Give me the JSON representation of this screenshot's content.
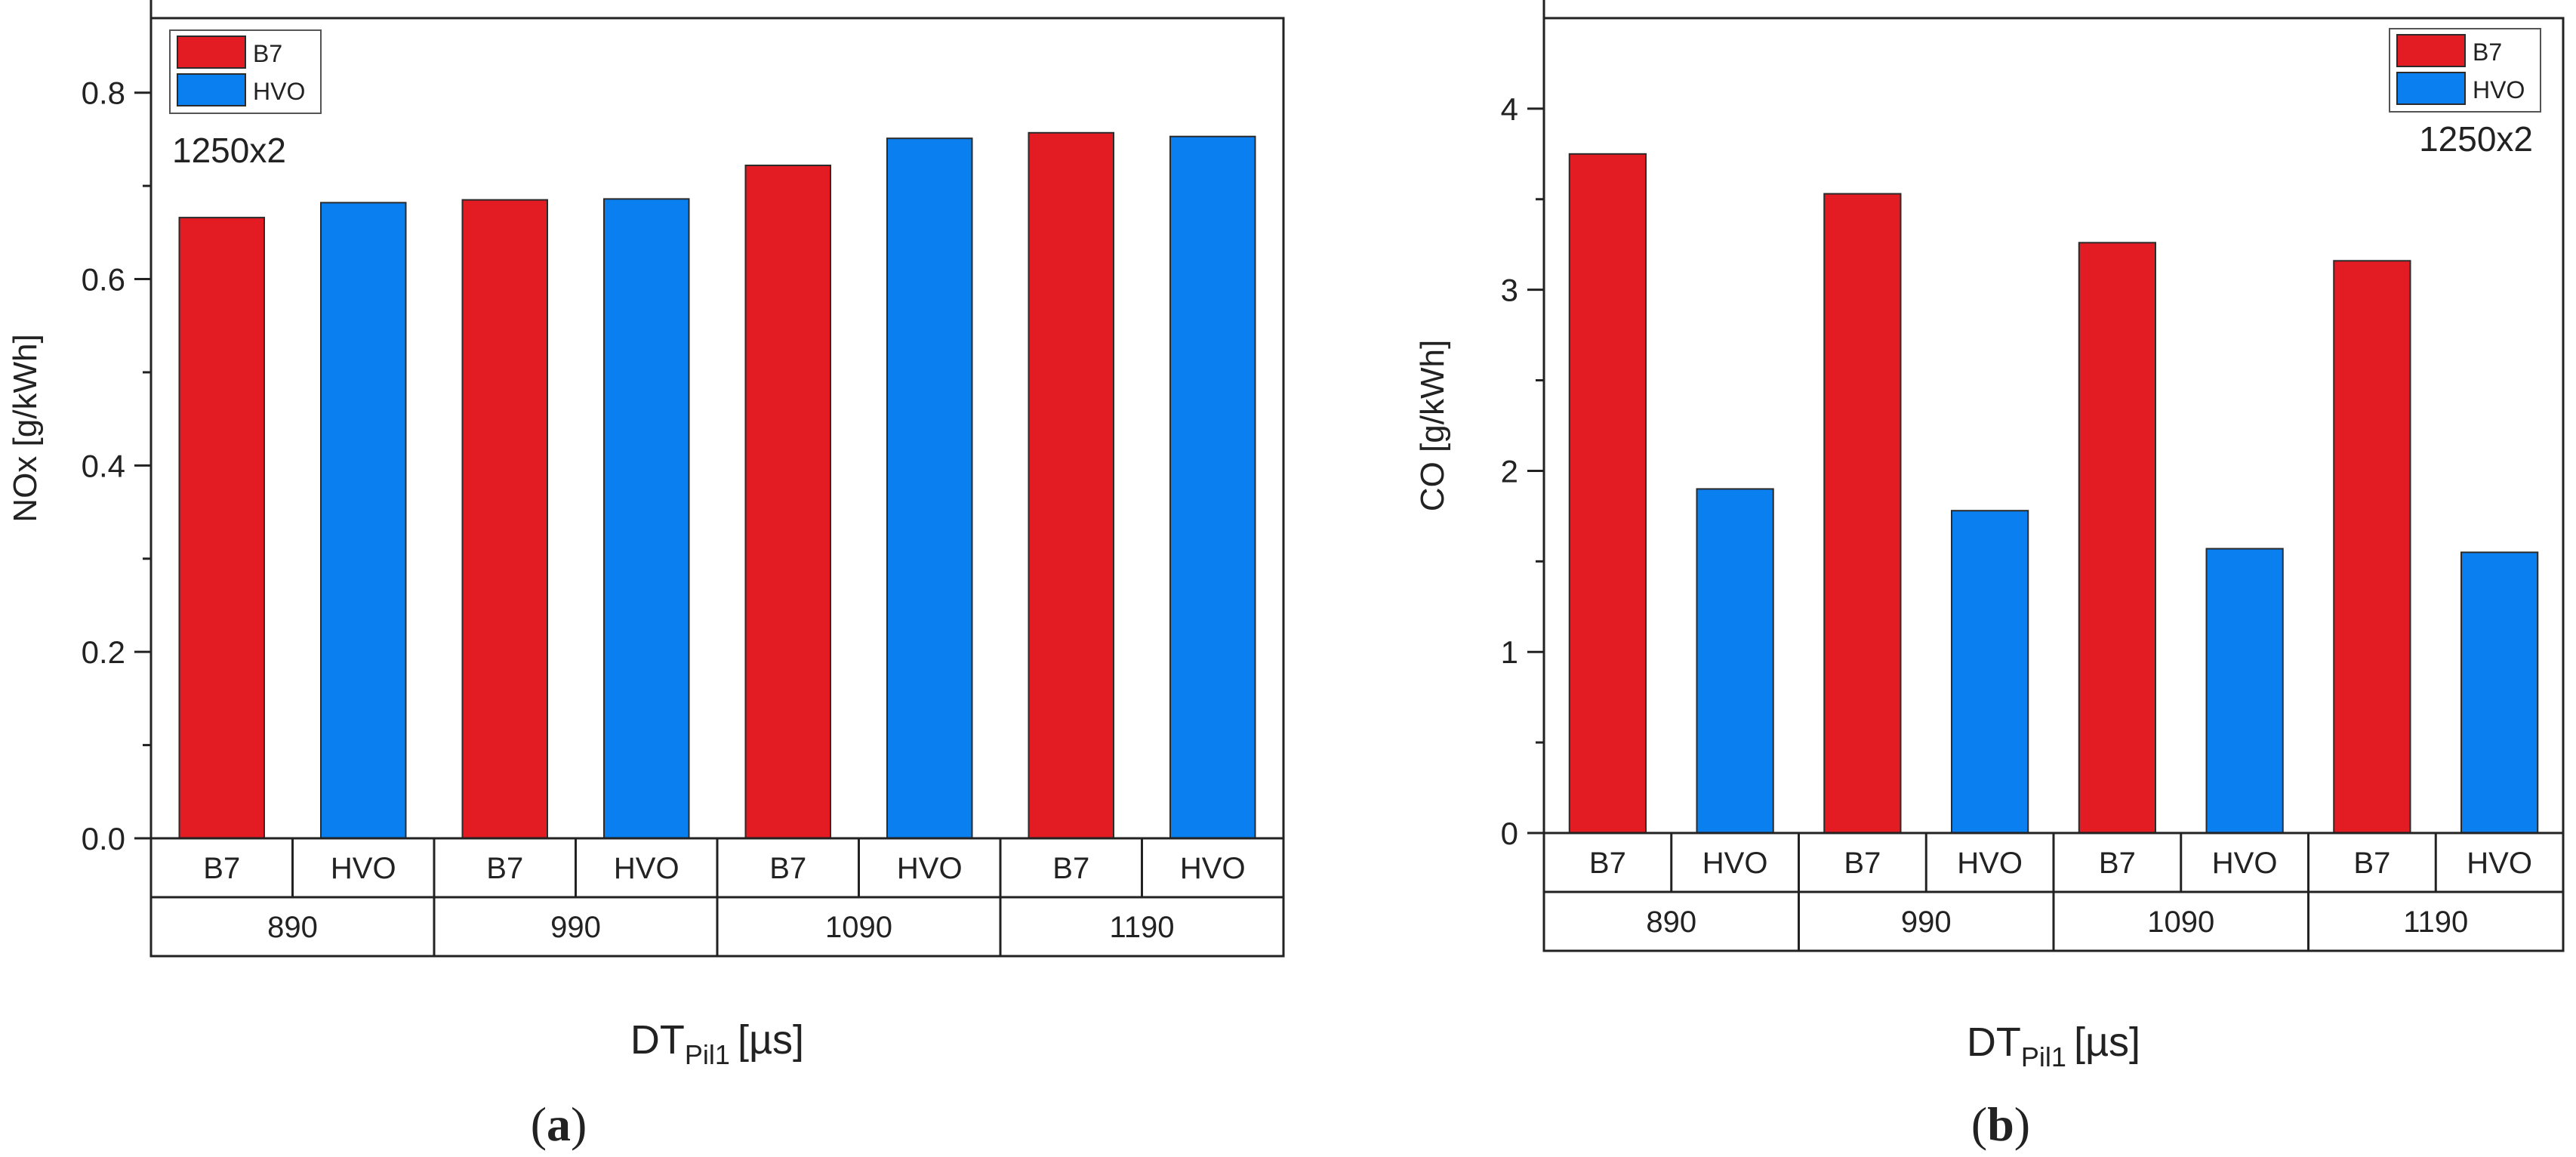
{
  "colors": {
    "B7": "#e31b23",
    "HVO": "#0a7ff0"
  },
  "chart_data": [
    {
      "type": "bar",
      "panel_label": "a",
      "ylabel": "NOx [g/kWh]",
      "xlabel_main": "DT",
      "xlabel_sub": "Pil1",
      "xlabel_unit": "[µs]",
      "annotation": "1250x2",
      "groups": [
        "890",
        "990",
        "1090",
        "1190"
      ],
      "bar_labels": [
        "B7",
        "HVO"
      ],
      "ylim": [
        0,
        0.88
      ],
      "yticks": [
        "0.0",
        "0.2",
        "0.4",
        "0.6",
        "0.8"
      ],
      "legend_placement": "top-left",
      "series": [
        {
          "name": "B7",
          "values": [
            0.666,
            0.685,
            0.722,
            0.757
          ]
        },
        {
          "name": "HVO",
          "values": [
            0.682,
            0.686,
            0.751,
            0.753
          ]
        }
      ]
    },
    {
      "type": "bar",
      "panel_label": "b",
      "ylabel": "CO [g/kWh]",
      "xlabel_main": "DT",
      "xlabel_sub": "Pil1",
      "xlabel_unit": "[µs]",
      "annotation": "1250x2",
      "groups": [
        "890",
        "990",
        "1090",
        "1190"
      ],
      "bar_labels": [
        "B7",
        "HVO"
      ],
      "ylim": [
        0,
        4.5
      ],
      "yticks": [
        "0",
        "1",
        "2",
        "3",
        "4"
      ],
      "legend_placement": "top-right",
      "series": [
        {
          "name": "B7",
          "values": [
            3.75,
            3.53,
            3.26,
            3.16
          ]
        },
        {
          "name": "HVO",
          "values": [
            1.9,
            1.78,
            1.57,
            1.55
          ]
        }
      ]
    }
  ]
}
